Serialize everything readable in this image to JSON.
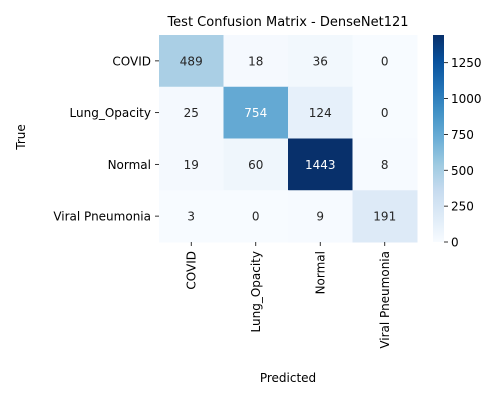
{
  "chart_data": {
    "type": "heatmap",
    "title": "Test Confusion Matrix - DenseNet121",
    "xlabel": "Predicted",
    "ylabel": "True",
    "x_categories": [
      "COVID",
      "Lung_Opacity",
      "Normal",
      "Viral Pneumonia"
    ],
    "y_categories": [
      "COVID",
      "Lung_Opacity",
      "Normal",
      "Viral Pneumonia"
    ],
    "values": [
      [
        489,
        18,
        36,
        0
      ],
      [
        25,
        754,
        124,
        0
      ],
      [
        19,
        60,
        1443,
        8
      ],
      [
        3,
        0,
        9,
        191
      ]
    ],
    "colormap": "Blues",
    "vmin": 0,
    "vmax": 1443,
    "colorbar_ticks": [
      0,
      250,
      500,
      750,
      1000,
      1250
    ],
    "colors": {
      "low": "#f7fbff",
      "high": "#08306b",
      "text_dark": "#262626",
      "text_light": "#ffffff"
    }
  }
}
